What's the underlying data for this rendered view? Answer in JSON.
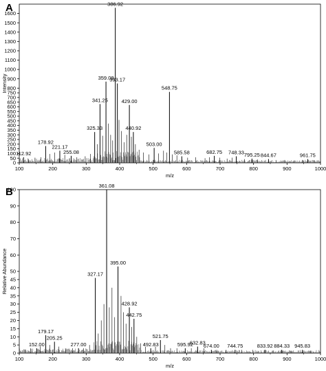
{
  "chart_data": [
    {
      "panel": "A",
      "type": "bar",
      "xlabel": "m/z",
      "ylabel": "Intensity",
      "xlim": [
        100,
        1000
      ],
      "ylim": [
        0,
        1700
      ],
      "xticks": [
        100,
        200,
        300,
        400,
        500,
        600,
        700,
        800,
        900,
        1000
      ],
      "yticks": [
        0,
        50,
        100,
        150,
        200,
        250,
        300,
        350,
        400,
        450,
        500,
        550,
        600,
        650,
        700,
        750,
        800,
        900,
        1000,
        1100,
        1200,
        1300,
        1400,
        1500,
        1600
      ],
      "grid": false,
      "labeled_peaks": [
        {
          "label": "112.92",
          "x": 112.92,
          "y": 60
        },
        {
          "label": "178.92",
          "x": 178.92,
          "y": 180
        },
        {
          "label": "221.17",
          "x": 221.17,
          "y": 130
        },
        {
          "label": "255.08",
          "x": 255.08,
          "y": 75
        },
        {
          "label": "325.33",
          "x": 325.33,
          "y": 330
        },
        {
          "label": "341.25",
          "x": 341.25,
          "y": 630
        },
        {
          "label": "359.08",
          "x": 359.08,
          "y": 870
        },
        {
          "label": "386.92",
          "x": 386.92,
          "y": 1660
        },
        {
          "label": "393.17",
          "x": 393.17,
          "y": 850
        },
        {
          "label": "429.00",
          "x": 429.0,
          "y": 620
        },
        {
          "label": "440.92",
          "x": 440.92,
          "y": 330
        },
        {
          "label": "503.00",
          "x": 503.0,
          "y": 160
        },
        {
          "label": "548.75",
          "x": 548.75,
          "y": 760
        },
        {
          "label": "585.58",
          "x": 585.58,
          "y": 70
        },
        {
          "label": "682.75",
          "x": 682.75,
          "y": 75
        },
        {
          "label": "748.33",
          "x": 748.33,
          "y": 70
        },
        {
          "label": "795.25",
          "x": 795.25,
          "y": 45
        },
        {
          "label": "844.67",
          "x": 844.67,
          "y": 40
        },
        {
          "label": "961.75",
          "x": 961.75,
          "y": 40
        }
      ],
      "minor_peaks": [
        {
          "x": 128,
          "y": 40
        },
        {
          "x": 147,
          "y": 55
        },
        {
          "x": 165,
          "y": 60
        },
        {
          "x": 191,
          "y": 95
        },
        {
          "x": 206,
          "y": 110
        },
        {
          "x": 236,
          "y": 85
        },
        {
          "x": 272,
          "y": 60
        },
        {
          "x": 297,
          "y": 70
        },
        {
          "x": 313,
          "y": 95
        },
        {
          "x": 333,
          "y": 200
        },
        {
          "x": 349,
          "y": 290
        },
        {
          "x": 366,
          "y": 420
        },
        {
          "x": 373,
          "y": 300
        },
        {
          "x": 379,
          "y": 240
        },
        {
          "x": 398,
          "y": 460
        },
        {
          "x": 405,
          "y": 340
        },
        {
          "x": 413,
          "y": 220
        },
        {
          "x": 421,
          "y": 300
        },
        {
          "x": 435,
          "y": 280
        },
        {
          "x": 447,
          "y": 200
        },
        {
          "x": 458,
          "y": 140
        },
        {
          "x": 471,
          "y": 110
        },
        {
          "x": 487,
          "y": 90
        },
        {
          "x": 516,
          "y": 100
        },
        {
          "x": 531,
          "y": 130
        },
        {
          "x": 541,
          "y": 110
        },
        {
          "x": 557,
          "y": 90
        },
        {
          "x": 571,
          "y": 80
        },
        {
          "x": 603,
          "y": 55
        },
        {
          "x": 627,
          "y": 60
        },
        {
          "x": 655,
          "y": 50
        },
        {
          "x": 668,
          "y": 60
        },
        {
          "x": 699,
          "y": 55
        },
        {
          "x": 721,
          "y": 45
        },
        {
          "x": 736,
          "y": 55
        },
        {
          "x": 773,
          "y": 40
        },
        {
          "x": 812,
          "y": 35
        },
        {
          "x": 867,
          "y": 30
        },
        {
          "x": 893,
          "y": 30
        },
        {
          "x": 921,
          "y": 25
        },
        {
          "x": 947,
          "y": 30
        },
        {
          "x": 983,
          "y": 25
        }
      ]
    },
    {
      "panel": "B",
      "type": "bar",
      "xlabel": "m/z",
      "ylabel": "Relative Abundance",
      "xlim": [
        100,
        1000
      ],
      "ylim": [
        0,
        100
      ],
      "xticks": [
        100,
        200,
        300,
        400,
        500,
        600,
        700,
        800,
        900,
        1000
      ],
      "yticks": [
        0,
        5,
        10,
        15,
        20,
        25,
        30,
        35,
        40,
        45,
        50,
        60,
        70,
        80,
        90,
        100
      ],
      "grid": false,
      "labeled_peaks": [
        {
          "label": "152.00",
          "x": 152.0,
          "y": 3
        },
        {
          "label": "179.17",
          "x": 179.17,
          "y": 11
        },
        {
          "label": "205.25",
          "x": 205.25,
          "y": 7
        },
        {
          "label": "277.00",
          "x": 277.0,
          "y": 3
        },
        {
          "label": "327.17",
          "x": 327.17,
          "y": 46
        },
        {
          "label": "361.08",
          "x": 361.08,
          "y": 100
        },
        {
          "label": "395.00",
          "x": 395.0,
          "y": 53
        },
        {
          "label": "428.92",
          "x": 428.92,
          "y": 28
        },
        {
          "label": "442.75",
          "x": 442.75,
          "y": 21
        },
        {
          "label": "492.83",
          "x": 492.83,
          "y": 3
        },
        {
          "label": "521.75",
          "x": 521.75,
          "y": 8
        },
        {
          "label": "595.92",
          "x": 595.92,
          "y": 3
        },
        {
          "label": "632.83",
          "x": 632.83,
          "y": 4
        },
        {
          "label": "674.00",
          "x": 674.0,
          "y": 2
        },
        {
          "label": "744.75",
          "x": 744.75,
          "y": 2
        },
        {
          "label": "833.92",
          "x": 833.92,
          "y": 2
        },
        {
          "label": "884.33",
          "x": 884.33,
          "y": 2
        },
        {
          "label": "945.83",
          "x": 945.83,
          "y": 2
        }
      ],
      "minor_peaks": [
        {
          "x": 118,
          "y": 2
        },
        {
          "x": 134,
          "y": 3
        },
        {
          "x": 163,
          "y": 4
        },
        {
          "x": 191,
          "y": 5
        },
        {
          "x": 218,
          "y": 4
        },
        {
          "x": 238,
          "y": 3
        },
        {
          "x": 259,
          "y": 3
        },
        {
          "x": 292,
          "y": 3
        },
        {
          "x": 310,
          "y": 5
        },
        {
          "x": 336,
          "y": 12
        },
        {
          "x": 345,
          "y": 20
        },
        {
          "x": 353,
          "y": 30
        },
        {
          "x": 369,
          "y": 28
        },
        {
          "x": 377,
          "y": 40
        },
        {
          "x": 385,
          "y": 22
        },
        {
          "x": 404,
          "y": 35
        },
        {
          "x": 411,
          "y": 25
        },
        {
          "x": 419,
          "y": 18
        },
        {
          "x": 436,
          "y": 16
        },
        {
          "x": 451,
          "y": 10
        },
        {
          "x": 463,
          "y": 6
        },
        {
          "x": 477,
          "y": 4
        },
        {
          "x": 507,
          "y": 4
        },
        {
          "x": 535,
          "y": 5
        },
        {
          "x": 552,
          "y": 3
        },
        {
          "x": 571,
          "y": 3
        },
        {
          "x": 614,
          "y": 3
        },
        {
          "x": 652,
          "y": 3
        },
        {
          "x": 690,
          "y": 2
        },
        {
          "x": 718,
          "y": 2
        },
        {
          "x": 765,
          "y": 2
        },
        {
          "x": 798,
          "y": 2
        },
        {
          "x": 858,
          "y": 1.5
        },
        {
          "x": 912,
          "y": 1.5
        },
        {
          "x": 971,
          "y": 1.5
        }
      ]
    }
  ]
}
